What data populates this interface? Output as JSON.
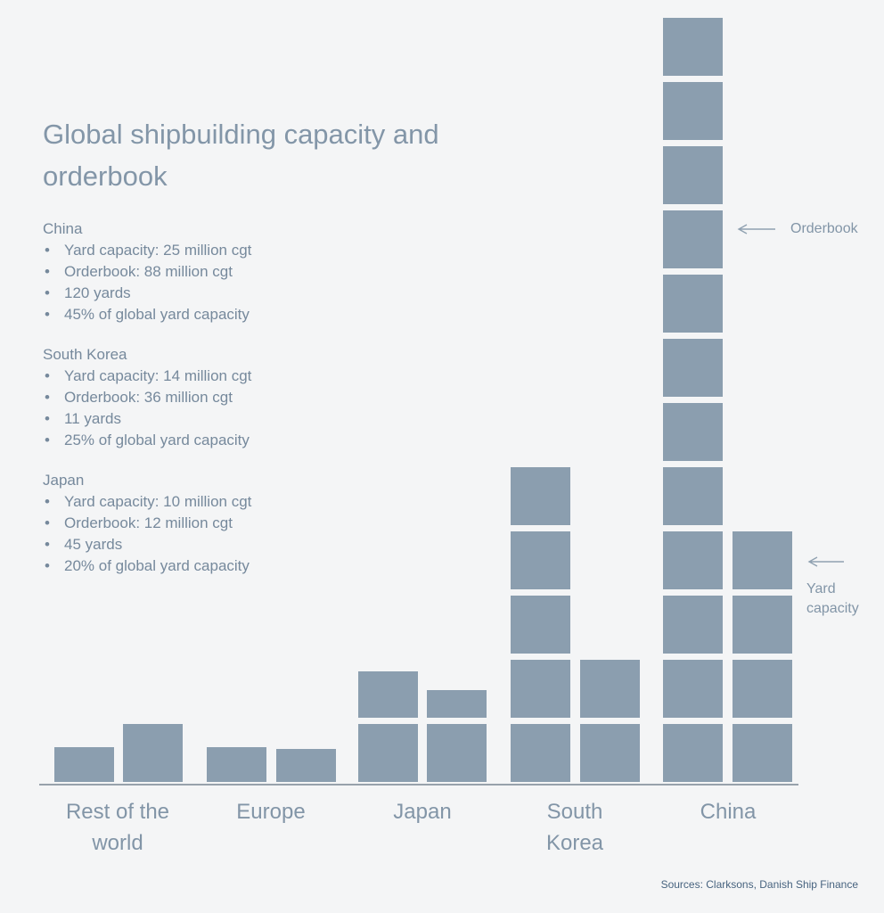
{
  "page": {
    "background": "#f4f5f6",
    "title": "Global shipbuilding capacity and orderbook",
    "source_note": "Sources: Clarksons, Danish Ship Finance"
  },
  "info_sections": [
    {
      "heading": "China",
      "bullets": [
        "Yard capacity: 25 million cgt",
        "Orderbook: 88 million cgt",
        "120 yards",
        "45% of global yard capacity"
      ]
    },
    {
      "heading": "South Korea",
      "bullets": [
        "Yard capacity: 14 million cgt",
        "Orderbook: 36 million cgt",
        "11 yards",
        "25% of global yard capacity"
      ]
    },
    {
      "heading": "Japan",
      "bullets": [
        "Yard capacity: 10 million cgt",
        "Orderbook: 12 million cgt",
        "45 yards",
        "20% of global yard capacity"
      ]
    }
  ],
  "annotations": {
    "orderbook_label": "Orderbook",
    "yard_capacity_label": "Yard capacity"
  },
  "chart_data": {
    "type": "bar",
    "subtype": "stacked-block-columns",
    "title": "Global shipbuilding capacity and orderbook",
    "unit": "million cgt",
    "grid": false,
    "legend_position": "arrow-annotations-right",
    "categories": [
      "Rest of the world",
      "Europe",
      "Japan",
      "South Korea",
      "China"
    ],
    "approx_block_value_mcgt": 7,
    "series": [
      {
        "name": "Orderbook",
        "values_mcgt": [
          null,
          null,
          12,
          36,
          88
        ],
        "blocks": [
          0.6,
          0.6,
          1.8,
          5,
          12
        ]
      },
      {
        "name": "Yard capacity",
        "values_mcgt": [
          null,
          null,
          10,
          14,
          25
        ],
        "blocks": [
          1.0,
          0.57,
          1.48,
          2,
          4
        ]
      }
    ],
    "colors": {
      "bar": "#8b9eaf",
      "axis": "#97a1ab",
      "text": "#8295a7"
    }
  }
}
